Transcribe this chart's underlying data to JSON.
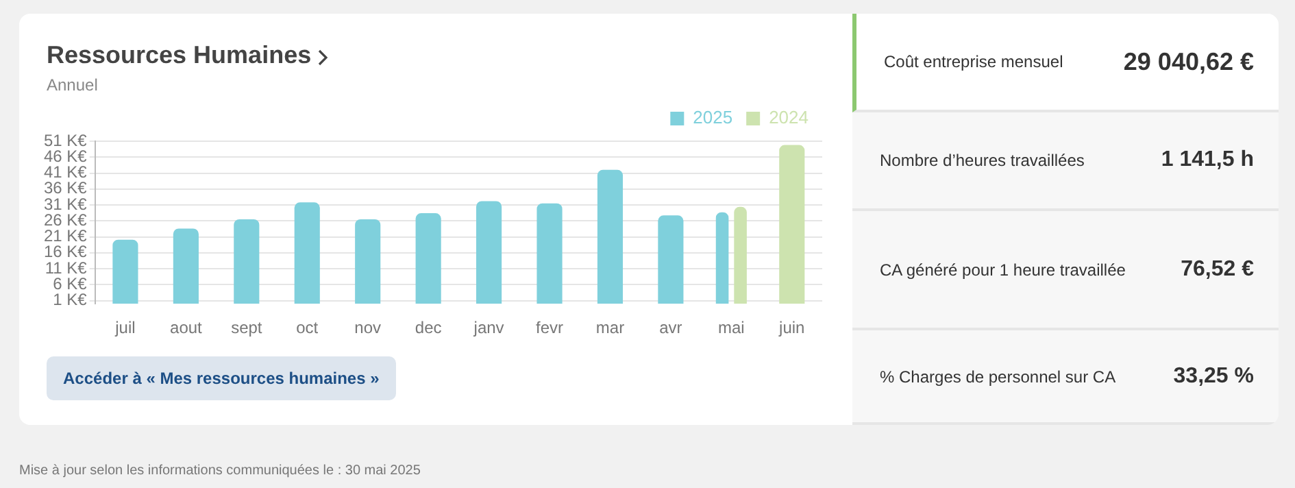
{
  "chart_data": [
    {
      "type": "bar",
      "title": "Ressources Humaines",
      "subtitle": "Annuel",
      "categories": [
        "juil",
        "aout",
        "sept",
        "oct",
        "nov",
        "dec",
        "janv",
        "fevr",
        "mar",
        "avr",
        "mai",
        "juin"
      ],
      "series": [
        {
          "name": "2025",
          "color": "#7fd0dc",
          "values": [
            20.1,
            23.6,
            26.5,
            31.8,
            26.5,
            28.4,
            32.2,
            31.5,
            42,
            27.7,
            28.7,
            null
          ]
        },
        {
          "name": "2024",
          "color": "#cde3af",
          "values": [
            null,
            null,
            null,
            null,
            null,
            null,
            null,
            null,
            null,
            null,
            30.4,
            49.8
          ]
        }
      ],
      "ylim": [
        0,
        51
      ],
      "yticks": [
        {
          "value": 1,
          "label": "1 K€"
        },
        {
          "value": 6,
          "label": "6 K€"
        },
        {
          "value": 11,
          "label": "11 K€"
        },
        {
          "value": 16,
          "label": "16 K€"
        },
        {
          "value": 21,
          "label": "21 K€"
        },
        {
          "value": 26,
          "label": "26 K€"
        },
        {
          "value": 31,
          "label": "31 K€"
        },
        {
          "value": 36,
          "label": "36 K€"
        },
        {
          "value": 41,
          "label": "41 K€"
        },
        {
          "value": 46,
          "label": "46 K€"
        },
        {
          "value": 51,
          "label": "51 K€"
        }
      ],
      "grid": "y",
      "legend": "top right",
      "annotations": [
        "Accéder à « Mes ressources humaines »",
        "Mise à jour selon les informations communiquées le : 30 mai 2025"
      ]
    },
    {
      "type": "other",
      "annotations": [
        "Coût entreprise mensuel",
        "29 040,62 €",
        "Nombre d’heures travaillées",
        "1 141,5 h",
        "CA généré pour 1 heure travaillée",
        "76,52 €",
        "% Charges de personnel sur CA",
        "33,25 %"
      ]
    }
  ]
}
